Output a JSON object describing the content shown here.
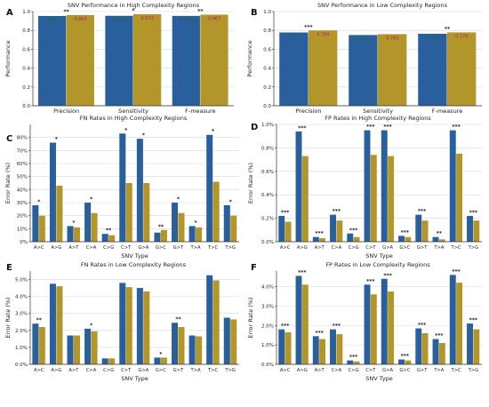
{
  "colors": {
    "blue": "#2a5f9e",
    "olive": "#b2962a",
    "gridline": "#d8d8d8",
    "axis": "#333333",
    "star": "#222222"
  },
  "chart_data": [
    {
      "panel": "A",
      "type": "bar",
      "title": "SNV Performance in High Complexity Regions",
      "xlabel": "",
      "ylabel": "Performance",
      "ylim": [
        0,
        1.0
      ],
      "yticks": [
        0.0,
        0.2,
        0.4,
        0.6,
        0.8,
        1.0
      ],
      "ytick_format": "fixed1",
      "categories": [
        "Precision",
        "Sensitivity",
        "F-measure"
      ],
      "series": [
        {
          "values": [
            0.953,
            0.955,
            0.954
          ]
        },
        {
          "values": [
            0.963,
            0.972,
            0.967
          ]
        }
      ],
      "value_labels": [
        [
          "0.953",
          "0.955",
          "0.954"
        ],
        [
          "0.963",
          "0.972",
          "0.967"
        ]
      ],
      "annotations": [
        "**",
        "*",
        "**"
      ]
    },
    {
      "panel": "B",
      "type": "bar",
      "title": "SNV Performance in Low Complexity Regions",
      "xlabel": "",
      "ylabel": "Performance",
      "ylim": [
        0,
        1.0
      ],
      "yticks": [
        0.0,
        0.2,
        0.4,
        0.6,
        0.8,
        1.0
      ],
      "ytick_format": "fixed1",
      "categories": [
        "Precision",
        "Sensitivity",
        "F-measure"
      ],
      "series": [
        {
          "values": [
            0.778,
            0.751,
            0.764
          ]
        },
        {
          "values": [
            0.799,
            0.76,
            0.779
          ]
        }
      ],
      "value_labels": [
        [
          "0.778",
          "0.751",
          "0.764"
        ],
        [
          "0.799",
          "0.760",
          "0.779"
        ]
      ],
      "annotations": [
        "***",
        "",
        "**"
      ]
    },
    {
      "panel": "C",
      "type": "bar",
      "title": "FN Rates in High Complexity Regions",
      "xlabel": "SNV Type",
      "ylabel": "Error Rate (%)",
      "ylim": [
        0,
        0.9
      ],
      "yticks": [
        0,
        0.1,
        0.2,
        0.3,
        0.4,
        0.5,
        0.6,
        0.7,
        0.8
      ],
      "ytick_format": "pct0",
      "categories": [
        "A>C",
        "A>G",
        "A>T",
        "C>A",
        "C>G",
        "C>T",
        "G>A",
        "G>C",
        "G>T",
        "T>A",
        "T>C",
        "T>G"
      ],
      "series": [
        {
          "values": [
            0.28,
            0.76,
            0.12,
            0.3,
            0.06,
            0.83,
            0.79,
            0.07,
            0.3,
            0.12,
            0.82,
            0.28
          ]
        },
        {
          "values": [
            0.2,
            0.43,
            0.11,
            0.22,
            0.05,
            0.45,
            0.45,
            0.09,
            0.22,
            0.11,
            0.46,
            0.2
          ]
        }
      ],
      "annotations": [
        "*",
        "*",
        "*",
        "*",
        "**",
        "*",
        "*",
        "**",
        "*",
        "*",
        "*",
        "*"
      ]
    },
    {
      "panel": "D",
      "type": "bar",
      "title": "FP Rates in High Complexity Regions",
      "xlabel": "SNV Type",
      "ylabel": "Error Rate (%)",
      "ylim": [
        0,
        1.0
      ],
      "yticks": [
        0,
        0.2,
        0.4,
        0.6,
        0.8,
        1.0
      ],
      "ytick_format": "pct1",
      "categories": [
        "A>C",
        "A>G",
        "A>T",
        "C>A",
        "C>G",
        "C>T",
        "G>A",
        "G>C",
        "G>T",
        "T>A",
        "T>C",
        "T>G"
      ],
      "series": [
        {
          "values": [
            0.22,
            0.94,
            0.04,
            0.23,
            0.07,
            0.95,
            0.95,
            0.05,
            0.23,
            0.04,
            0.95,
            0.22
          ]
        },
        {
          "values": [
            0.17,
            0.73,
            0.03,
            0.18,
            0.04,
            0.74,
            0.73,
            0.04,
            0.18,
            0.02,
            0.75,
            0.18
          ]
        }
      ],
      "annotations": [
        "***",
        "***",
        "***",
        "***",
        "***",
        "***",
        "***",
        "***",
        "***",
        "**",
        "***",
        "***"
      ]
    },
    {
      "panel": "E",
      "type": "bar",
      "title": "FN Rates in Low Complexity Regions",
      "xlabel": "SNV Type",
      "ylabel": "Error Rate (%)",
      "ylim": [
        0,
        5.5
      ],
      "yticks": [
        0,
        1,
        2,
        3,
        4,
        5
      ],
      "ytick_format": "pct1",
      "categories": [
        "A>C",
        "A>G",
        "A>T",
        "C>A",
        "C>G",
        "C>T",
        "G>A",
        "G>C",
        "G>T",
        "T>A",
        "T>C",
        "T>G"
      ],
      "series": [
        {
          "values": [
            2.4,
            4.75,
            1.7,
            2.1,
            0.35,
            4.8,
            4.5,
            0.4,
            2.45,
            1.7,
            5.25,
            2.75
          ]
        },
        {
          "values": [
            2.2,
            4.6,
            1.7,
            1.95,
            0.35,
            4.55,
            4.3,
            0.4,
            2.2,
            1.65,
            4.95,
            2.65
          ]
        }
      ],
      "annotations": [
        "**",
        "",
        "",
        "*",
        "",
        "",
        "",
        "*",
        "**",
        "",
        "",
        ""
      ]
    },
    {
      "panel": "F",
      "type": "bar",
      "title": "FP Rates in Low Complexity Regions",
      "xlabel": "SNV Type",
      "ylabel": "Error Rate (%)",
      "ylim": [
        0,
        4.8
      ],
      "yticks": [
        0,
        1,
        2,
        3,
        4
      ],
      "ytick_format": "pct1",
      "categories": [
        "A>C",
        "A>G",
        "A>T",
        "C>A",
        "C>G",
        "C>T",
        "G>A",
        "G>C",
        "G>T",
        "T>A",
        "T>C",
        "T>G"
      ],
      "series": [
        {
          "values": [
            1.8,
            4.55,
            1.45,
            1.8,
            0.2,
            4.1,
            4.4,
            0.25,
            1.85,
            1.3,
            4.6,
            2.1
          ]
        },
        {
          "values": [
            1.65,
            4.1,
            1.3,
            1.55,
            0.15,
            3.6,
            3.75,
            0.2,
            1.6,
            1.1,
            4.2,
            1.8
          ]
        }
      ],
      "annotations": [
        "***",
        "***",
        "***",
        "***",
        "***",
        "***",
        "***",
        "***",
        "***",
        "***",
        "***",
        "***"
      ]
    }
  ]
}
